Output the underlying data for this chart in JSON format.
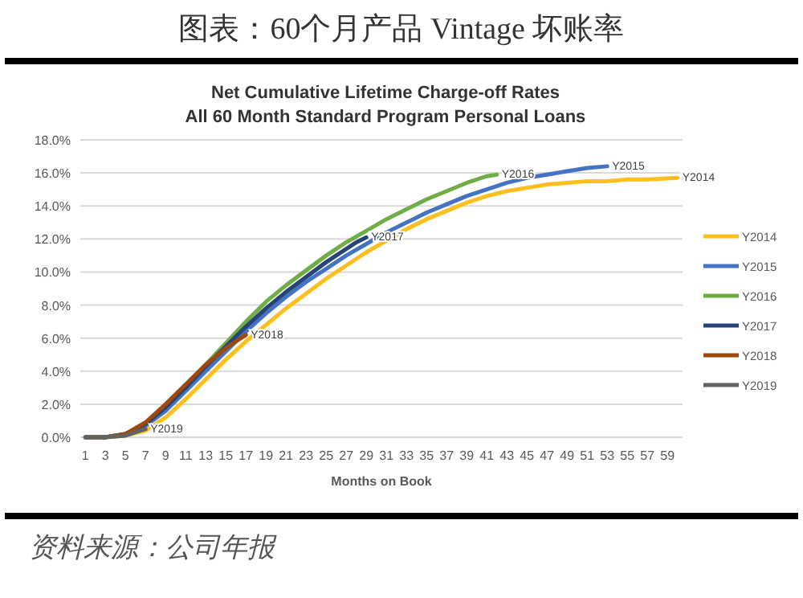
{
  "chart_data": {
    "type": "line",
    "title": "图表：60个月产品 Vintage 坏账率",
    "subtitle": "Net Cumulative Lifetime Charge-off Rates\nAll 60 Month Standard Program Personal Loans",
    "xlabel": "Months on Book",
    "annotations": [
      "资料来源：公司年报"
    ],
    "xlim": [
      0.5,
      60.5
    ],
    "xticks": [
      1,
      3,
      5,
      7,
      9,
      11,
      13,
      15,
      17,
      19,
      21,
      23,
      25,
      27,
      29,
      31,
      33,
      35,
      37,
      39,
      41,
      43,
      45,
      47,
      49,
      51,
      53,
      55,
      57,
      59
    ],
    "ylim": [
      0,
      18
    ],
    "yticks": [
      {
        "value": 0,
        "label": "0.0%"
      },
      {
        "value": 2,
        "label": "2.0%"
      },
      {
        "value": 4,
        "label": "4.0%"
      },
      {
        "value": 6,
        "label": "6.0%"
      },
      {
        "value": 8,
        "label": "8.0%"
      },
      {
        "value": 10,
        "label": "10.0%"
      },
      {
        "value": 12,
        "label": "12.0%"
      },
      {
        "value": 14,
        "label": "14.0%"
      },
      {
        "value": 16,
        "label": "16.0%"
      },
      {
        "value": 18,
        "label": "18.0%"
      }
    ],
    "grid": "y",
    "legend": "right",
    "marker": "none",
    "line_style": "solid",
    "series": [
      {
        "name": "Y2014",
        "color": "#fcbf1e",
        "x": [
          1,
          3,
          5,
          7,
          9,
          11,
          13,
          15,
          17,
          19,
          21,
          23,
          25,
          27,
          29,
          31,
          33,
          35,
          37,
          39,
          41,
          43,
          45,
          47,
          49,
          51,
          53,
          55,
          57,
          60
        ],
        "values": [
          0,
          0,
          0.1,
          0.4,
          1.2,
          2.3,
          3.5,
          4.7,
          5.8,
          6.8,
          7.8,
          8.7,
          9.6,
          10.4,
          11.2,
          11.9,
          12.6,
          13.2,
          13.7,
          14.2,
          14.6,
          14.9,
          15.1,
          15.3,
          15.4,
          15.5,
          15.5,
          15.6,
          15.6,
          15.7
        ]
      },
      {
        "name": "Y2015",
        "color": "#4472c4",
        "x": [
          5,
          7,
          9,
          11,
          13,
          15,
          17,
          19,
          21,
          23,
          25,
          27,
          29,
          31,
          33,
          35,
          37,
          39,
          41,
          43,
          45,
          47,
          49,
          51,
          53
        ],
        "values": [
          0.2,
          0.7,
          1.6,
          2.8,
          4.0,
          5.2,
          6.4,
          7.5,
          8.5,
          9.4,
          10.2,
          11.0,
          11.7,
          12.4,
          13.0,
          13.6,
          14.1,
          14.6,
          15.0,
          15.4,
          15.7,
          15.9,
          16.1,
          16.3,
          16.4
        ]
      },
      {
        "name": "Y2016",
        "color": "#70ad47",
        "x": [
          1,
          3,
          5,
          7,
          9,
          11,
          13,
          15,
          17,
          19,
          21,
          23,
          25,
          27,
          29,
          31,
          33,
          35,
          37,
          39,
          41,
          42
        ],
        "values": [
          0,
          0,
          0.2,
          0.8,
          1.8,
          3.0,
          4.4,
          5.7,
          7.0,
          8.2,
          9.2,
          10.1,
          11.0,
          11.8,
          12.5,
          13.2,
          13.8,
          14.4,
          14.9,
          15.4,
          15.8,
          15.9
        ]
      },
      {
        "name": "Y2017",
        "color": "#264478",
        "x": [
          1,
          3,
          5,
          7,
          9,
          11,
          13,
          15,
          17,
          19,
          21,
          23,
          25,
          27,
          28,
          29
        ],
        "values": [
          0,
          0,
          0.2,
          0.8,
          1.8,
          3.0,
          4.3,
          5.5,
          6.7,
          7.8,
          8.8,
          9.7,
          10.6,
          11.4,
          11.8,
          12.1
        ]
      },
      {
        "name": "Y2018",
        "color": "#9e480e",
        "x": [
          1,
          3,
          5,
          7,
          9,
          11,
          13,
          15,
          17
        ],
        "values": [
          0,
          0,
          0.2,
          0.9,
          2.0,
          3.2,
          4.4,
          5.4,
          6.2
        ]
      },
      {
        "name": "Y2019",
        "color": "#636363",
        "x": [
          1,
          3,
          5,
          7
        ],
        "values": [
          0,
          0,
          0.1,
          0.5
        ]
      }
    ]
  }
}
